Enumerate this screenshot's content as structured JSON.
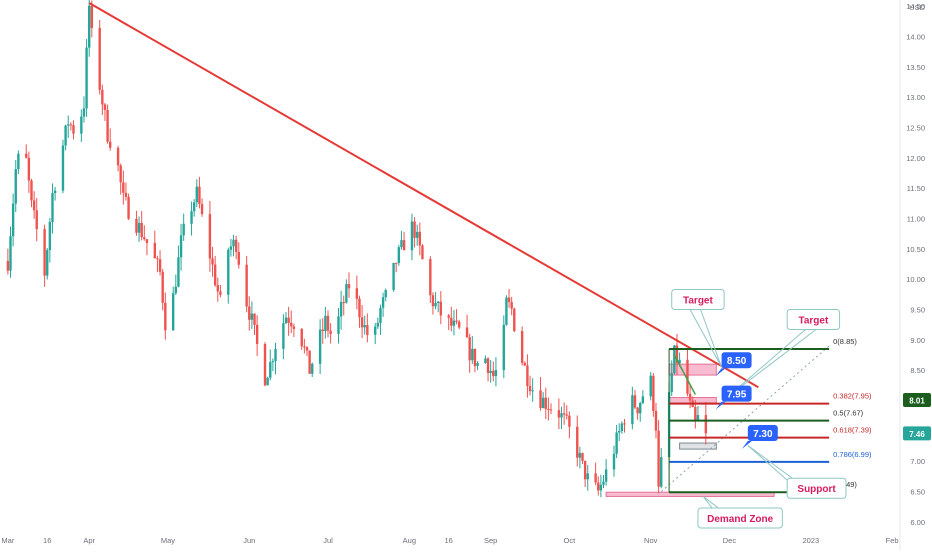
{
  "chart_data": {
    "type": "candlestick",
    "currency": "USD",
    "colors": {
      "up": "#26a69a",
      "down": "#ef5350",
      "trendline": "#e53935",
      "level_green": "#1b5e20",
      "level_red": "#c62828",
      "level_blue": "#1e60d6",
      "callout_red": "#d81b60",
      "callout_blue": "#2962ff",
      "zone_fill": "#f8bbd0",
      "zone_fill_gray": "#dfe3e6",
      "axis_text": "#6b6f78"
    },
    "y_axis": {
      "range": [
        5.9,
        14.6
      ],
      "ticks": [
        "6.00",
        "6.50",
        "7.00",
        "7.50",
        "8.00",
        "8.50",
        "9.00",
        "9.50",
        "10.00",
        "10.50",
        "11.00",
        "11.50",
        "12.00",
        "12.50",
        "13.00",
        "13.50",
        "14.00",
        "14.50"
      ],
      "price_tags": [
        {
          "label": "8.01",
          "value": 8.01,
          "color": "#1b5e20"
        },
        {
          "label": "7.46",
          "value": 7.46,
          "color": "#26a69a"
        }
      ]
    },
    "x_axis": {
      "labels": [
        {
          "label": "Mar",
          "day": 0
        },
        {
          "label": "16",
          "day": 15
        },
        {
          "label": "Apr",
          "day": 31
        },
        {
          "label": "May",
          "day": 61
        },
        {
          "label": "Jun",
          "day": 92
        },
        {
          "label": "Jul",
          "day": 122
        },
        {
          "label": "Aug",
          "day": 153
        },
        {
          "label": "16",
          "day": 168
        },
        {
          "label": "Sep",
          "day": 184
        },
        {
          "label": "Oct",
          "day": 214
        },
        {
          "label": "Nov",
          "day": 245
        },
        {
          "label": "Dec",
          "day": 275
        },
        {
          "label": "2023",
          "day": 306
        },
        {
          "label": "Feb",
          "day": 337
        }
      ],
      "day_range": [
        -3,
        340
      ]
    },
    "price_path": [
      [
        0,
        10.3
      ],
      [
        3,
        11.8
      ],
      [
        6,
        12.3
      ],
      [
        9,
        11.2
      ],
      [
        12,
        10.6
      ],
      [
        14,
        10.1
      ],
      [
        17,
        11.4
      ],
      [
        20,
        12.0
      ],
      [
        23,
        12.6
      ],
      [
        26,
        12.4
      ],
      [
        29,
        12.9
      ],
      [
        31,
        14.5
      ],
      [
        33,
        13.5
      ],
      [
        35,
        13.2
      ],
      [
        38,
        12.4
      ],
      [
        41,
        12.1
      ],
      [
        44,
        11.3
      ],
      [
        48,
        11.0
      ],
      [
        52,
        10.7
      ],
      [
        55,
        10.4
      ],
      [
        58,
        10.1
      ],
      [
        60,
        9.3
      ],
      [
        61,
        8.2
      ],
      [
        63,
        9.7
      ],
      [
        66,
        10.6
      ],
      [
        69,
        11.1
      ],
      [
        72,
        11.4
      ],
      [
        75,
        10.8
      ],
      [
        78,
        10.2
      ],
      [
        81,
        9.6
      ],
      [
        84,
        10.5
      ],
      [
        87,
        10.6
      ],
      [
        90,
        9.8
      ],
      [
        93,
        9.3
      ],
      [
        95,
        8.9
      ],
      [
        97,
        8.3
      ],
      [
        100,
        8.6
      ],
      [
        103,
        9.1
      ],
      [
        106,
        9.4
      ],
      [
        109,
        9.3
      ],
      [
        112,
        9.0
      ],
      [
        115,
        8.5
      ],
      [
        118,
        8.9
      ],
      [
        121,
        9.3
      ],
      [
        124,
        9.0
      ],
      [
        127,
        9.5
      ],
      [
        130,
        9.9
      ],
      [
        133,
        9.6
      ],
      [
        136,
        9.2
      ],
      [
        139,
        8.9
      ],
      [
        142,
        9.5
      ],
      [
        145,
        9.8
      ],
      [
        148,
        10.3
      ],
      [
        151,
        10.6
      ],
      [
        153,
        10.9
      ],
      [
        155,
        10.8
      ],
      [
        158,
        10.3
      ],
      [
        161,
        9.7
      ],
      [
        164,
        9.5
      ],
      [
        167,
        9.3
      ],
      [
        170,
        9.2
      ],
      [
        173,
        9.1
      ],
      [
        176,
        8.8
      ],
      [
        179,
        8.6
      ],
      [
        182,
        8.7
      ],
      [
        185,
        8.4
      ],
      [
        188,
        8.6
      ],
      [
        190,
        9.6
      ],
      [
        192,
        9.5
      ],
      [
        195,
        8.8
      ],
      [
        198,
        8.4
      ],
      [
        201,
        8.1
      ],
      [
        204,
        8.0
      ],
      [
        207,
        7.9
      ],
      [
        210,
        7.8
      ],
      [
        213,
        7.6
      ],
      [
        216,
        7.3
      ],
      [
        219,
        6.9
      ],
      [
        222,
        6.6
      ],
      [
        225,
        6.5
      ],
      [
        228,
        6.8
      ],
      [
        231,
        7.2
      ],
      [
        234,
        7.6
      ],
      [
        237,
        8.0
      ],
      [
        240,
        7.9
      ],
      [
        243,
        8.2
      ],
      [
        245,
        8.3
      ],
      [
        247,
        7.6
      ],
      [
        248,
        6.5
      ],
      [
        250,
        7.4
      ],
      [
        252,
        8.1
      ],
      [
        254,
        8.75
      ],
      [
        256,
        8.6
      ],
      [
        258,
        8.3
      ],
      [
        260,
        7.9
      ],
      [
        262,
        7.6
      ],
      [
        264,
        7.8
      ],
      [
        266,
        7.46
      ]
    ],
    "trendline": {
      "from": {
        "day": 31,
        "price": 14.55
      },
      "to": {
        "day": 286,
        "price": 8.22
      }
    },
    "fib_levels": [
      {
        "label": "0(8.85)",
        "value": 8.85,
        "color": "#1b5e20"
      },
      {
        "label": "0.382(7.95)",
        "value": 7.95,
        "color": "#c62828"
      },
      {
        "label": "0.5(7.67)",
        "value": 7.67,
        "color": "#1b5e20"
      },
      {
        "label": "0.618(7.39)",
        "value": 7.39,
        "color": "#c62828"
      },
      {
        "label": "0.786(6.99)",
        "value": 6.99,
        "color": "#1e60d6"
      },
      {
        "label": "1(6.49)",
        "value": 6.49,
        "color": "#1b5e20"
      }
    ],
    "fib_start_day": 252,
    "fib_end_day": 313,
    "zones": [
      {
        "from_day": 252,
        "to_day": 270,
        "low": 8.42,
        "high": 8.6,
        "kind": "pink"
      },
      {
        "from_day": 252,
        "to_day": 270,
        "low": 7.96,
        "high": 8.05,
        "kind": "pink"
      },
      {
        "from_day": 256,
        "to_day": 270,
        "low": 7.2,
        "high": 7.3,
        "kind": "gray"
      },
      {
        "from_day": 228,
        "to_day": 292,
        "low": 6.42,
        "high": 6.49,
        "kind": "pink"
      }
    ],
    "price_boxes": [
      {
        "label": "7.30",
        "value": 7.3,
        "day": 282
      },
      {
        "label": "7.95",
        "value": 7.95,
        "day": 272
      },
      {
        "label": "8.50",
        "value": 8.5,
        "day": 272
      }
    ],
    "callouts": [
      {
        "label": "Target",
        "color": "#d81b60",
        "box_day": 253,
        "box_price": 9.83,
        "tip_day": 272,
        "tip_price": 8.55
      },
      {
        "label": "Target",
        "color": "#d81b60",
        "box_day": 297,
        "box_price": 9.5,
        "tip_day": 274,
        "tip_price": 8.05
      },
      {
        "label": "Support",
        "color": "#d81b60",
        "box_day": 297,
        "box_price": 6.72,
        "tip_day": 282,
        "tip_price": 7.26
      },
      {
        "label": "Demand Zone",
        "color": "#d81b60",
        "box_day": 263,
        "box_price": 6.23,
        "tip_day": 265,
        "tip_price": 6.42
      }
    ]
  }
}
